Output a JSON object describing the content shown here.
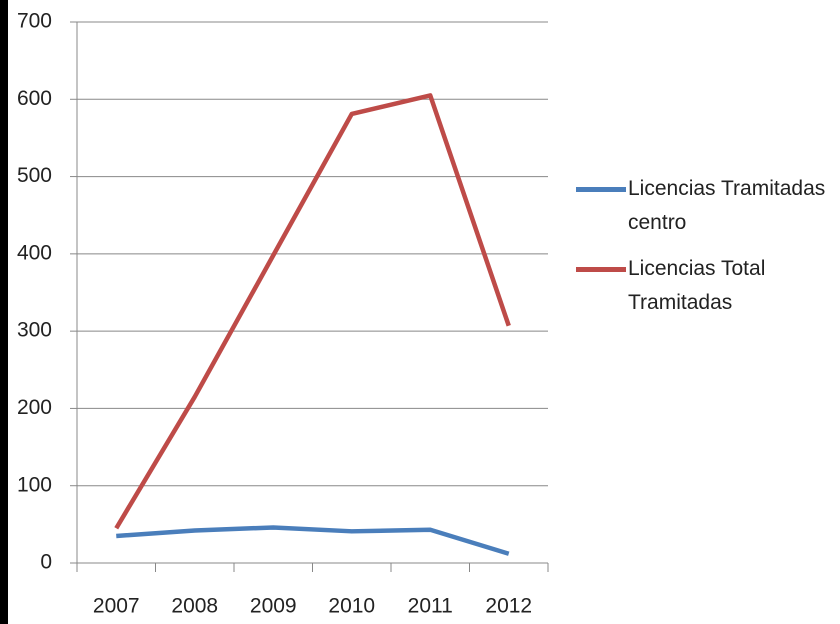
{
  "chart_data": {
    "type": "line",
    "categories": [
      "2007",
      "2008",
      "2009",
      "2010",
      "2011",
      "2012"
    ],
    "series": [
      {
        "name": "Licencias  Tramitadas centro",
        "color": "#4a7ebb",
        "values": [
          35,
          42,
          46,
          41,
          43,
          12
        ]
      },
      {
        "name": "Licencias Total Tramitadas",
        "color": "#be4b48",
        "values": [
          45,
          215,
          398,
          581,
          605,
          307
        ]
      }
    ],
    "ylim": [
      0,
      700
    ],
    "yticks": [
      0,
      100,
      200,
      300,
      400,
      500,
      600,
      700
    ],
    "grid": true
  }
}
